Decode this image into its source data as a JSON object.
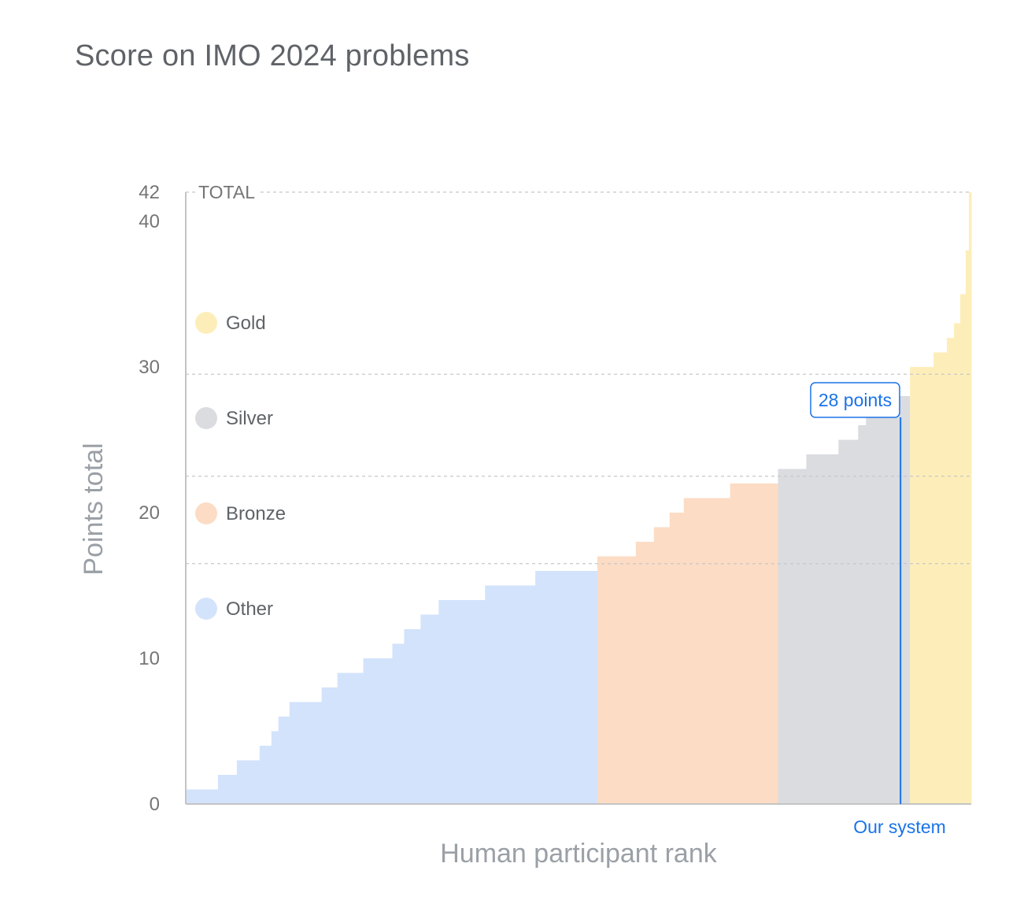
{
  "page": {
    "title": "Score on IMO 2024 problems"
  },
  "chart_data": {
    "type": "area",
    "title": "Score on IMO 2024 problems",
    "xlabel": "Human participant rank",
    "ylabel": "Points total",
    "ylim": [
      0,
      42
    ],
    "y_ticks": [
      "0",
      "10",
      "20",
      "30",
      "40",
      "42"
    ],
    "total_label": "TOTAL",
    "total_value": 42,
    "medal_thresholds": [
      {
        "name": "Bronze",
        "value": 16
      },
      {
        "name": "Silver",
        "value": 22
      },
      {
        "name": "Gold",
        "value": 29
      }
    ],
    "legend": [
      {
        "name": "Gold",
        "color": "#fdeeb9"
      },
      {
        "name": "Silver",
        "color": "#dadce0"
      },
      {
        "name": "Bronze",
        "color": "#fcdcc4"
      },
      {
        "name": "Other",
        "color": "#d3e3fc"
      }
    ],
    "marker": {
      "label": "28 points",
      "value": 28,
      "caption": "Our system",
      "color": "#1a73e8"
    },
    "x_range": [
      0,
      1000
    ],
    "steps": [
      {
        "x0": 0,
        "x1": 41,
        "y": 1,
        "group": "Other"
      },
      {
        "x0": 41,
        "x1": 65,
        "y": 2,
        "group": "Other"
      },
      {
        "x0": 65,
        "x1": 94,
        "y": 3,
        "group": "Other"
      },
      {
        "x0": 94,
        "x1": 109,
        "y": 4,
        "group": "Other"
      },
      {
        "x0": 109,
        "x1": 118,
        "y": 5,
        "group": "Other"
      },
      {
        "x0": 118,
        "x1": 132,
        "y": 6,
        "group": "Other"
      },
      {
        "x0": 132,
        "x1": 173,
        "y": 7,
        "group": "Other"
      },
      {
        "x0": 173,
        "x1": 193,
        "y": 8,
        "group": "Other"
      },
      {
        "x0": 193,
        "x1": 226,
        "y": 9,
        "group": "Other"
      },
      {
        "x0": 226,
        "x1": 263,
        "y": 10,
        "group": "Other"
      },
      {
        "x0": 263,
        "x1": 278,
        "y": 11,
        "group": "Other"
      },
      {
        "x0": 278,
        "x1": 299,
        "y": 12,
        "group": "Other"
      },
      {
        "x0": 299,
        "x1": 322,
        "y": 13,
        "group": "Other"
      },
      {
        "x0": 322,
        "x1": 381,
        "y": 14,
        "group": "Other"
      },
      {
        "x0": 381,
        "x1": 445,
        "y": 15,
        "group": "Other"
      },
      {
        "x0": 445,
        "x1": 524,
        "y": 16,
        "group": "Other"
      },
      {
        "x0": 524,
        "x1": 573,
        "y": 17,
        "group": "Bronze"
      },
      {
        "x0": 573,
        "x1": 596,
        "y": 18,
        "group": "Bronze"
      },
      {
        "x0": 596,
        "x1": 616,
        "y": 19,
        "group": "Bronze"
      },
      {
        "x0": 616,
        "x1": 634,
        "y": 20,
        "group": "Bronze"
      },
      {
        "x0": 634,
        "x1": 693,
        "y": 21,
        "group": "Bronze"
      },
      {
        "x0": 693,
        "x1": 754,
        "y": 22,
        "group": "Bronze"
      },
      {
        "x0": 754,
        "x1": 790,
        "y": 23,
        "group": "Silver"
      },
      {
        "x0": 790,
        "x1": 831,
        "y": 24,
        "group": "Silver"
      },
      {
        "x0": 831,
        "x1": 856,
        "y": 25,
        "group": "Silver"
      },
      {
        "x0": 856,
        "x1": 866,
        "y": 26,
        "group": "Silver"
      },
      {
        "x0": 866,
        "x1": 884,
        "y": 27,
        "group": "Silver"
      },
      {
        "x0": 884,
        "x1": 922,
        "y": 28,
        "group": "Silver"
      },
      {
        "x0": 922,
        "x1": 952,
        "y": 30,
        "group": "Gold"
      },
      {
        "x0": 952,
        "x1": 969,
        "y": 31,
        "group": "Gold"
      },
      {
        "x0": 969,
        "x1": 978,
        "y": 32,
        "group": "Gold"
      },
      {
        "x0": 978,
        "x1": 986,
        "y": 33,
        "group": "Gold"
      },
      {
        "x0": 986,
        "x1": 993,
        "y": 35,
        "group": "Gold"
      },
      {
        "x0": 993,
        "x1": 997,
        "y": 38,
        "group": "Gold"
      },
      {
        "x0": 997,
        "x1": 1000,
        "y": 42,
        "group": "Gold"
      }
    ],
    "marker_x": 910,
    "grid": "dashed threshold lines",
    "legend_placement": "left inside plot"
  }
}
